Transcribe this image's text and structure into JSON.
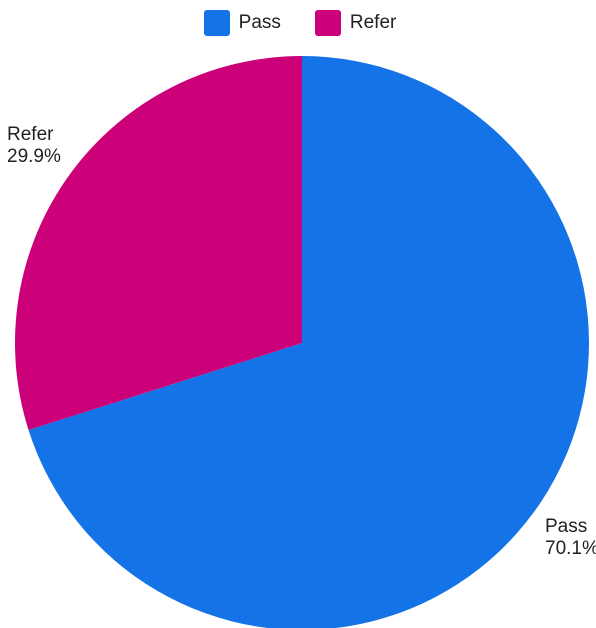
{
  "chart_data": {
    "type": "pie",
    "categories": [
      "Pass",
      "Refer"
    ],
    "values": [
      70.1,
      29.9
    ],
    "labels": [
      "70.1%",
      "29.9%"
    ],
    "colors": [
      "#1473E6",
      "#CC0078"
    ],
    "legend_position": "top"
  }
}
